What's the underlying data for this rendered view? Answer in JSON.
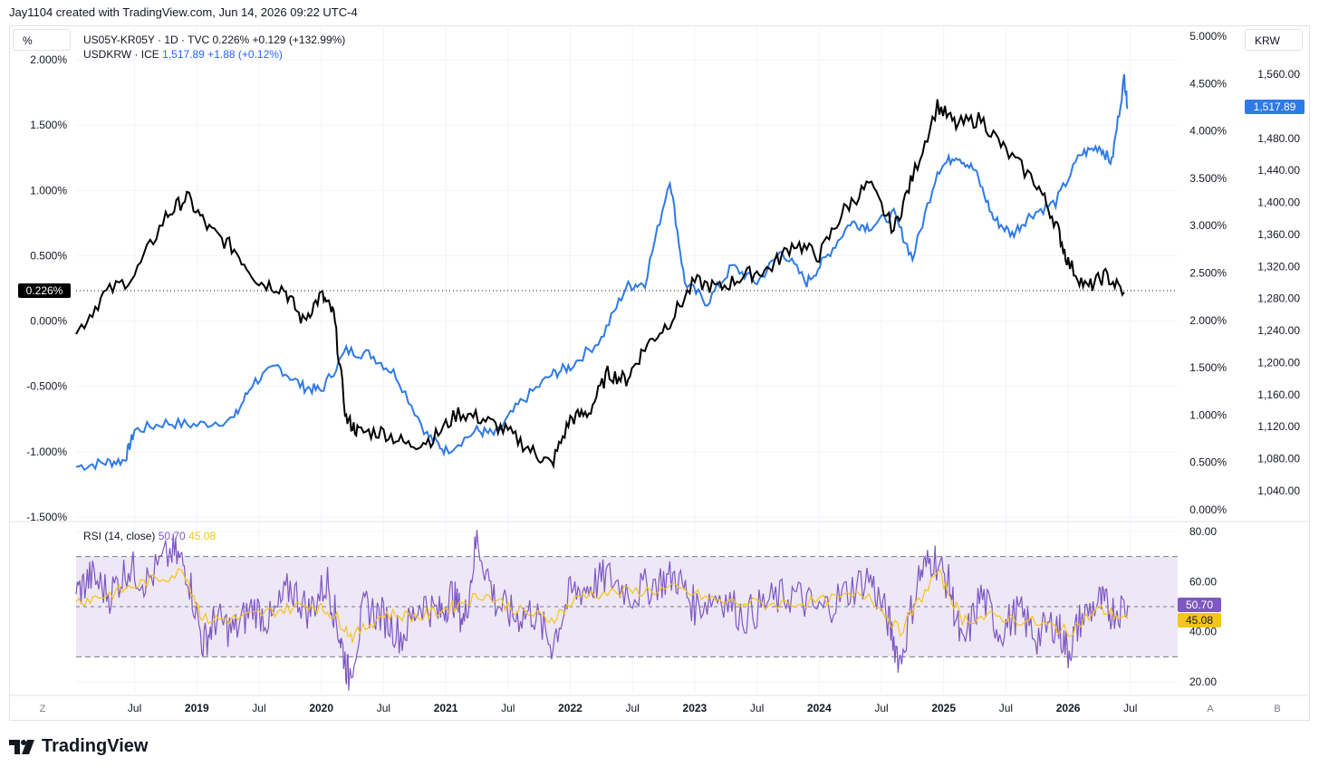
{
  "header": {
    "caption": "Jay1104 created with TradingView.com, Jun 14, 2026 09:22 UTC-4"
  },
  "controls": {
    "left_scale": "%",
    "right_scale": "KRW",
    "bottom_left": "Z",
    "bottom_a": "A",
    "bottom_b": "B"
  },
  "legend": {
    "line1": "US05Y-KR05Y · 1D · TVC  0.226%  +0.129 (+132.99%)",
    "line2_name": "USDKRW · ICE",
    "line2_values": "1,517.89  +1.88 (+0.12%)"
  },
  "rsi_legend": {
    "name": "RSI (14, close)",
    "value1": "50.70",
    "value2": "45.08"
  },
  "badges": {
    "spread": "0.226%",
    "usdkrw": "1,517.89",
    "rsi": "50.70",
    "rsi_ma": "45.08"
  },
  "footer": {
    "brand": "TradingView"
  },
  "colors": {
    "spread": "#000000",
    "usdkrw": "#2f7ae5",
    "rsi": "#7e57c2",
    "rsi_ma": "#f5c518",
    "rsi_band": "#ede7f6"
  },
  "chart_data": [
    {
      "type": "line",
      "x_ticks": [
        "Jul",
        "2019",
        "Jul",
        "2020",
        "Jul",
        "2021",
        "Jul",
        "2022",
        "Jul",
        "2023",
        "Jul",
        "2024",
        "Jul",
        "2025",
        "Jul",
        "2026",
        "Jul"
      ],
      "x_tick_t": [
        2018.5,
        2019.0,
        2019.5,
        2020.0,
        2020.5,
        2021.0,
        2021.5,
        2022.0,
        2022.5,
        2023.0,
        2023.5,
        2024.0,
        2024.5,
        2025.0,
        2025.5,
        2026.0,
        2026.5
      ],
      "x_range": [
        2018.03,
        2026.88
      ],
      "left_axis": {
        "ticks": [
          "2.000%",
          "1.500%",
          "1.000%",
          "0.500%",
          "0.000%",
          "-0.500%",
          "-1.000%",
          "-1.500%"
        ],
        "tick_values": [
          2.0,
          1.5,
          1.0,
          0.5,
          0.0,
          -0.5,
          -1.0,
          -1.5
        ],
        "ylim": [
          -1.5,
          2.0
        ]
      },
      "right_pct_axis": {
        "ticks": [
          "5.000%",
          "4.500%",
          "4.000%",
          "3.500%",
          "3.000%",
          "2.500%",
          "2.000%",
          "1.500%",
          "1.000%",
          "0.500%",
          "0.000%"
        ],
        "tick_values": [
          5.0,
          4.5,
          4.0,
          3.5,
          3.0,
          2.5,
          2.0,
          1.5,
          1.0,
          0.5,
          0.0
        ],
        "ylim": [
          0.0,
          5.0
        ]
      },
      "right_krw_axis": {
        "ticks": [
          "1,560.00",
          "1,520.00",
          "1,480.00",
          "1,440.00",
          "1,400.00",
          "1,360.00",
          "1,320.00",
          "1,280.00",
          "1,240.00",
          "1,200.00",
          "1,160.00",
          "1,120.00",
          "1,080.00",
          "1,040.00"
        ],
        "tick_values": [
          1560,
          1520,
          1480,
          1440,
          1400,
          1360,
          1320,
          1280,
          1240,
          1200,
          1160,
          1120,
          1080,
          1040
        ]
      },
      "series": [
        {
          "name": "US05Y-KR05Y",
          "axis": "left",
          "points": [
            [
              2018.03,
              -0.1
            ],
            [
              2018.25,
              0.2
            ],
            [
              2018.5,
              0.35
            ],
            [
              2018.75,
              0.8
            ],
            [
              2018.92,
              0.95
            ],
            [
              2019.1,
              0.7
            ],
            [
              2019.3,
              0.55
            ],
            [
              2019.5,
              0.3
            ],
            [
              2019.7,
              0.25
            ],
            [
              2019.85,
              0.0
            ],
            [
              2020.0,
              0.2
            ],
            [
              2020.1,
              0.05
            ],
            [
              2020.2,
              -0.75
            ],
            [
              2020.3,
              -0.85
            ],
            [
              2020.5,
              -0.85
            ],
            [
              2020.7,
              -0.95
            ],
            [
              2020.9,
              -0.9
            ],
            [
              2021.1,
              -0.7
            ],
            [
              2021.3,
              -0.75
            ],
            [
              2021.5,
              -0.85
            ],
            [
              2021.7,
              -1.0
            ],
            [
              2021.85,
              -1.1
            ],
            [
              2022.0,
              -0.75
            ],
            [
              2022.15,
              -0.7
            ],
            [
              2022.3,
              -0.4
            ],
            [
              2022.45,
              -0.45
            ],
            [
              2022.6,
              -0.2
            ],
            [
              2022.8,
              0.0
            ],
            [
              2023.0,
              0.3
            ],
            [
              2023.2,
              0.25
            ],
            [
              2023.4,
              0.35
            ],
            [
              2023.6,
              0.4
            ],
            [
              2023.8,
              0.6
            ],
            [
              2024.0,
              0.5
            ],
            [
              2024.2,
              0.85
            ],
            [
              2024.4,
              1.05
            ],
            [
              2024.6,
              0.7
            ],
            [
              2024.75,
              1.1
            ],
            [
              2024.95,
              1.65
            ],
            [
              2025.1,
              1.5
            ],
            [
              2025.3,
              1.55
            ],
            [
              2025.5,
              1.3
            ],
            [
              2025.75,
              1.05
            ],
            [
              2025.9,
              0.75
            ],
            [
              2026.0,
              0.45
            ],
            [
              2026.15,
              0.25
            ],
            [
              2026.3,
              0.35
            ],
            [
              2026.45,
              0.22
            ]
          ]
        },
        {
          "name": "USDKRW",
          "axis": "right_krw",
          "points": [
            [
              2018.03,
              1070
            ],
            [
              2018.25,
              1075
            ],
            [
              2018.42,
              1078
            ],
            [
              2018.5,
              1115
            ],
            [
              2018.75,
              1125
            ],
            [
              2019.0,
              1122
            ],
            [
              2019.3,
              1130
            ],
            [
              2019.45,
              1175
            ],
            [
              2019.65,
              1195
            ],
            [
              2019.85,
              1170
            ],
            [
              2020.0,
              1165
            ],
            [
              2020.2,
              1215
            ],
            [
              2020.4,
              1210
            ],
            [
              2020.6,
              1185
            ],
            [
              2020.85,
              1110
            ],
            [
              2021.0,
              1090
            ],
            [
              2021.25,
              1115
            ],
            [
              2021.4,
              1110
            ],
            [
              2021.6,
              1150
            ],
            [
              2021.85,
              1185
            ],
            [
              2022.0,
              1195
            ],
            [
              2022.25,
              1230
            ],
            [
              2022.45,
              1295
            ],
            [
              2022.6,
              1300
            ],
            [
              2022.8,
              1430
            ],
            [
              2022.92,
              1300
            ],
            [
              2023.1,
              1275
            ],
            [
              2023.3,
              1320
            ],
            [
              2023.5,
              1300
            ],
            [
              2023.7,
              1340
            ],
            [
              2023.9,
              1300
            ],
            [
              2024.05,
              1330
            ],
            [
              2024.25,
              1375
            ],
            [
              2024.4,
              1370
            ],
            [
              2024.6,
              1385
            ],
            [
              2024.75,
              1330
            ],
            [
              2024.95,
              1440
            ],
            [
              2025.1,
              1460
            ],
            [
              2025.25,
              1440
            ],
            [
              2025.4,
              1380
            ],
            [
              2025.55,
              1360
            ],
            [
              2025.7,
              1385
            ],
            [
              2025.9,
              1400
            ],
            [
              2026.1,
              1460
            ],
            [
              2026.25,
              1470
            ],
            [
              2026.35,
              1450
            ],
            [
              2026.45,
              1555
            ],
            [
              2026.48,
              1517.89
            ]
          ]
        }
      ]
    },
    {
      "type": "line",
      "title": "RSI (14, close)",
      "y_ticks": [
        "80.00",
        "60.00",
        "40.00",
        "20.00"
      ],
      "y_tick_values": [
        80,
        60,
        40,
        20
      ],
      "ylim": [
        16.2,
        82.5
      ],
      "levels": [
        70,
        50,
        30
      ],
      "series": [
        {
          "name": "RSI",
          "last": 50.7,
          "points": [
            [
              2018.03,
              55
            ],
            [
              2018.15,
              62
            ],
            [
              2018.3,
              55
            ],
            [
              2018.45,
              66
            ],
            [
              2018.6,
              60
            ],
            [
              2018.8,
              72
            ],
            [
              2018.92,
              65
            ],
            [
              2019.05,
              35
            ],
            [
              2019.15,
              45
            ],
            [
              2019.3,
              40
            ],
            [
              2019.45,
              50
            ],
            [
              2019.6,
              44
            ],
            [
              2019.75,
              58
            ],
            [
              2019.9,
              48
            ],
            [
              2020.05,
              60
            ],
            [
              2020.15,
              38
            ],
            [
              2020.22,
              22
            ],
            [
              2020.35,
              50
            ],
            [
              2020.5,
              46
            ],
            [
              2020.65,
              38
            ],
            [
              2020.8,
              52
            ],
            [
              2020.95,
              47
            ],
            [
              2021.05,
              55
            ],
            [
              2021.15,
              44
            ],
            [
              2021.25,
              77
            ],
            [
              2021.4,
              52
            ],
            [
              2021.55,
              46
            ],
            [
              2021.7,
              48
            ],
            [
              2021.85,
              35
            ],
            [
              2022.0,
              55
            ],
            [
              2022.15,
              58
            ],
            [
              2022.3,
              62
            ],
            [
              2022.5,
              55
            ],
            [
              2022.7,
              60
            ],
            [
              2022.85,
              62
            ],
            [
              2023.0,
              50
            ],
            [
              2023.2,
              55
            ],
            [
              2023.4,
              46
            ],
            [
              2023.6,
              52
            ],
            [
              2023.8,
              55
            ],
            [
              2024.0,
              48
            ],
            [
              2024.2,
              55
            ],
            [
              2024.4,
              62
            ],
            [
              2024.55,
              45
            ],
            [
              2024.65,
              28
            ],
            [
              2024.8,
              62
            ],
            [
              2024.92,
              70
            ],
            [
              2025.05,
              58
            ],
            [
              2025.15,
              33
            ],
            [
              2025.3,
              55
            ],
            [
              2025.45,
              40
            ],
            [
              2025.6,
              48
            ],
            [
              2025.75,
              38
            ],
            [
              2025.9,
              44
            ],
            [
              2026.0,
              32
            ],
            [
              2026.1,
              45
            ],
            [
              2026.25,
              52
            ],
            [
              2026.35,
              48
            ],
            [
              2026.48,
              50.7
            ]
          ]
        },
        {
          "name": "RSI MA",
          "last": 45.08,
          "points": [
            [
              2018.03,
              52
            ],
            [
              2018.3,
              55
            ],
            [
              2018.6,
              60
            ],
            [
              2018.9,
              64
            ],
            [
              2019.05,
              45
            ],
            [
              2019.3,
              45
            ],
            [
              2019.6,
              48
            ],
            [
              2019.9,
              51
            ],
            [
              2020.1,
              47
            ],
            [
              2020.25,
              38
            ],
            [
              2020.5,
              47
            ],
            [
              2020.8,
              46
            ],
            [
              2021.05,
              50
            ],
            [
              2021.3,
              55
            ],
            [
              2021.6,
              48
            ],
            [
              2021.85,
              45
            ],
            [
              2022.1,
              55
            ],
            [
              2022.5,
              56
            ],
            [
              2022.85,
              57
            ],
            [
              2023.2,
              52
            ],
            [
              2023.6,
              51
            ],
            [
              2024.0,
              52
            ],
            [
              2024.4,
              55
            ],
            [
              2024.65,
              40
            ],
            [
              2024.95,
              64
            ],
            [
              2025.15,
              45
            ],
            [
              2025.45,
              46
            ],
            [
              2025.8,
              43
            ],
            [
              2026.0,
              40
            ],
            [
              2026.25,
              49
            ],
            [
              2026.48,
              45.08
            ]
          ]
        }
      ]
    }
  ]
}
